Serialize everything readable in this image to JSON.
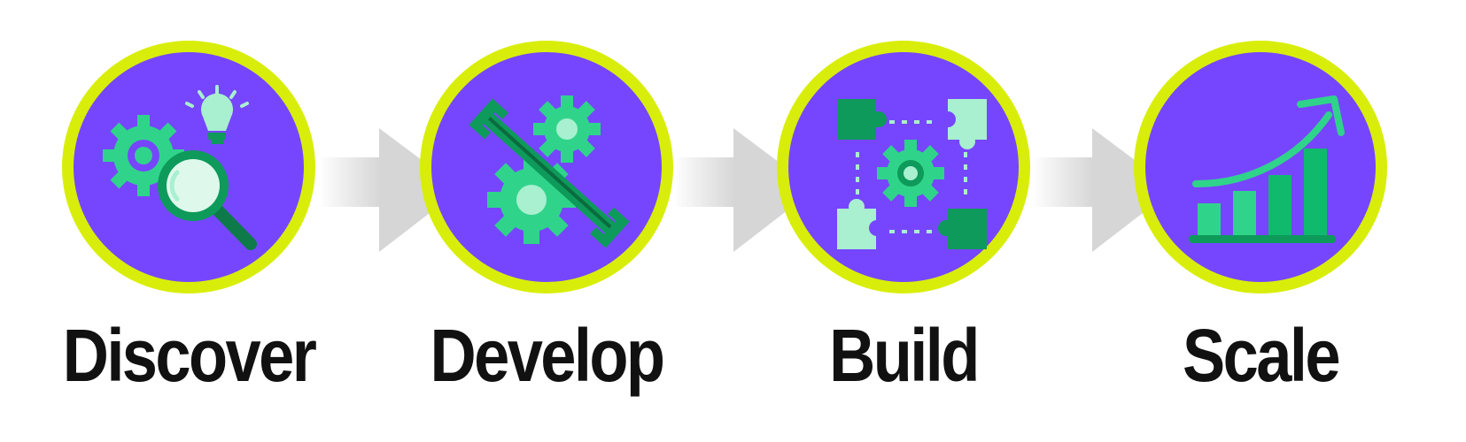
{
  "steps": [
    {
      "label": "Discover",
      "icon": "magnifier-gears-bulb-icon"
    },
    {
      "label": "Develop",
      "icon": "gears-wrench-icon"
    },
    {
      "label": "Build",
      "icon": "puzzle-gear-icon"
    },
    {
      "label": "Scale",
      "icon": "growth-bar-chart-icon"
    }
  ],
  "colors": {
    "ring": "#d8ee0a",
    "circle": "#7646ff",
    "arrow": "#dcdcdc",
    "green_dark": "#0e9a5a",
    "green": "#2fd48a",
    "green_light": "#a8f0d0",
    "text": "#111111"
  }
}
